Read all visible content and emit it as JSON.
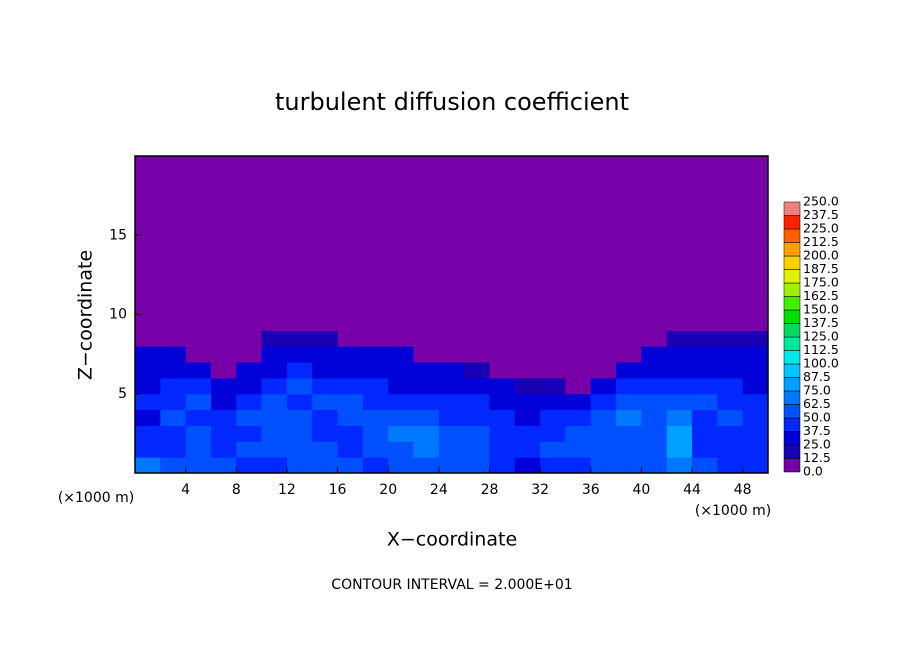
{
  "chart_data": {
    "type": "heatmap",
    "title": "turbulent diffusion coefficient",
    "xlabel": "X−coordinate",
    "ylabel": "Z−coordinate",
    "x_unit": "(×1000 m)",
    "y_unit": "(×1000 m)",
    "footer": "CONTOUR INTERVAL = 2.000E+01",
    "xlim": [
      0,
      50
    ],
    "ylim": [
      0,
      20
    ],
    "xticks": [
      4,
      8,
      12,
      16,
      20,
      24,
      28,
      32,
      36,
      40,
      44,
      48
    ],
    "yticks": [
      5,
      10,
      15
    ],
    "x": [
      1,
      3,
      5,
      7,
      9,
      11,
      13,
      15,
      17,
      19,
      21,
      23,
      25,
      27,
      29,
      31,
      33,
      35,
      37,
      39,
      41,
      43,
      45,
      47,
      49
    ],
    "y": [
      0.5,
      1.5,
      2.5,
      3.5,
      4.5,
      5.5,
      6.5,
      7.5,
      8.5,
      9.5,
      10.5,
      11.5,
      12.5,
      13.5,
      14.5,
      15.5,
      16.5,
      17.5,
      18.5,
      19.5
    ],
    "z": [
      [
        70,
        60,
        55,
        50,
        45,
        40,
        55,
        60,
        50,
        45,
        60,
        55,
        50,
        50,
        40,
        35,
        40,
        45,
        50,
        55,
        60,
        70,
        50,
        45,
        40
      ],
      [
        45,
        40,
        50,
        45,
        50,
        55,
        60,
        50,
        45,
        55,
        60,
        65,
        60,
        50,
        45,
        40,
        50,
        55,
        60,
        50,
        55,
        80,
        45,
        40,
        45
      ],
      [
        40,
        45,
        55,
        40,
        45,
        50,
        55,
        45,
        40,
        50,
        70,
        65,
        55,
        50,
        45,
        40,
        45,
        50,
        60,
        55,
        50,
        75,
        40,
        45,
        40
      ],
      [
        35,
        50,
        45,
        40,
        50,
        60,
        50,
        45,
        50,
        60,
        55,
        50,
        45,
        40,
        40,
        35,
        40,
        45,
        55,
        65,
        55,
        70,
        45,
        50,
        40
      ],
      [
        40,
        45,
        50,
        35,
        45,
        55,
        45,
        50,
        55,
        45,
        40,
        45,
        40,
        45,
        35,
        30,
        35,
        35,
        45,
        55,
        60,
        55,
        50,
        45,
        40
      ],
      [
        35,
        40,
        40,
        30,
        35,
        40,
        50,
        45,
        40,
        40,
        35,
        35,
        30,
        30,
        25,
        20,
        20,
        0,
        25,
        40,
        45,
        40,
        40,
        45,
        35
      ],
      [
        30,
        35,
        25,
        0,
        25,
        35,
        40,
        35,
        35,
        30,
        30,
        25,
        25,
        20,
        0,
        0,
        0,
        0,
        0,
        25,
        35,
        35,
        35,
        30,
        30
      ],
      [
        25,
        25,
        0,
        0,
        0,
        30,
        30,
        30,
        25,
        25,
        25,
        0,
        0,
        0,
        0,
        0,
        0,
        0,
        0,
        0,
        25,
        30,
        30,
        30,
        25
      ],
      [
        0,
        0,
        0,
        0,
        0,
        15,
        15,
        15,
        0,
        0,
        0,
        0,
        0,
        0,
        0,
        0,
        0,
        0,
        0,
        0,
        0,
        15,
        15,
        15,
        15
      ],
      [
        0,
        0,
        0,
        0,
        0,
        0,
        0,
        0,
        0,
        0,
        0,
        0,
        0,
        0,
        0,
        0,
        0,
        0,
        0,
        0,
        0,
        0,
        0,
        0,
        0
      ],
      [
        0,
        0,
        0,
        0,
        0,
        0,
        0,
        0,
        0,
        0,
        0,
        0,
        0,
        0,
        0,
        0,
        0,
        0,
        0,
        0,
        0,
        0,
        0,
        0,
        0
      ],
      [
        0,
        0,
        0,
        0,
        0,
        0,
        0,
        0,
        0,
        0,
        0,
        0,
        0,
        0,
        0,
        0,
        0,
        0,
        0,
        0,
        0,
        0,
        0,
        0,
        0
      ],
      [
        0,
        0,
        0,
        0,
        0,
        0,
        0,
        0,
        0,
        0,
        0,
        0,
        0,
        0,
        0,
        0,
        0,
        0,
        0,
        0,
        0,
        0,
        0,
        0,
        0
      ],
      [
        0,
        0,
        0,
        0,
        0,
        0,
        0,
        0,
        0,
        0,
        0,
        0,
        0,
        0,
        0,
        0,
        0,
        0,
        0,
        0,
        0,
        0,
        0,
        0,
        0
      ],
      [
        0,
        0,
        0,
        0,
        0,
        0,
        0,
        0,
        0,
        0,
        0,
        0,
        0,
        0,
        0,
        0,
        0,
        0,
        0,
        0,
        0,
        0,
        0,
        0,
        0
      ],
      [
        0,
        0,
        0,
        0,
        0,
        0,
        0,
        0,
        0,
        0,
        0,
        0,
        0,
        0,
        0,
        0,
        0,
        0,
        0,
        0,
        0,
        0,
        0,
        0,
        0
      ],
      [
        0,
        0,
        0,
        0,
        0,
        0,
        0,
        0,
        0,
        0,
        0,
        0,
        0,
        0,
        0,
        0,
        0,
        0,
        0,
        0,
        0,
        0,
        0,
        0,
        0
      ],
      [
        0,
        0,
        0,
        0,
        0,
        0,
        0,
        0,
        0,
        0,
        0,
        0,
        0,
        0,
        0,
        0,
        0,
        0,
        0,
        0,
        0,
        0,
        0,
        0,
        0
      ],
      [
        0,
        0,
        0,
        0,
        0,
        0,
        0,
        0,
        0,
        0,
        0,
        0,
        0,
        0,
        0,
        0,
        0,
        0,
        0,
        0,
        0,
        0,
        0,
        0,
        0
      ],
      [
        0,
        0,
        0,
        0,
        0,
        0,
        0,
        0,
        0,
        0,
        0,
        0,
        0,
        0,
        0,
        0,
        0,
        0,
        0,
        0,
        0,
        0,
        0,
        0,
        0
      ]
    ],
    "colorbar_ticks": [
      {
        "value": 0,
        "label": "0.0"
      },
      12.5,
      {
        "value": 25,
        "label": "25.0"
      },
      37.5,
      {
        "value": 50,
        "label": "50.0"
      },
      62.5,
      {
        "value": 75,
        "label": "75.0"
      },
      87.5,
      {
        "value": 100,
        "label": "100.0"
      },
      112.5,
      {
        "value": 125,
        "label": "125.0"
      },
      137.5,
      {
        "value": 150,
        "label": "150.0"
      },
      162.5,
      {
        "value": 175,
        "label": "175.0"
      },
      187.5,
      {
        "value": 200,
        "label": "200.0"
      },
      212.5,
      {
        "value": 225,
        "label": "225.0"
      },
      237.5,
      {
        "value": 250,
        "label": "250.0"
      }
    ],
    "colors": [
      "#7800a8",
      "#1800b4",
      "#0000d8",
      "#0028ff",
      "#0050ff",
      "#0078ff",
      "#00a0ff",
      "#00c8ff",
      "#00e8e8",
      "#00e8a0",
      "#00d860",
      "#00e000",
      "#40f000",
      "#a0f000",
      "#e0f000",
      "#ffd000",
      "#ffa000",
      "#ff6000",
      "#ff2000",
      "#f08080"
    ]
  }
}
